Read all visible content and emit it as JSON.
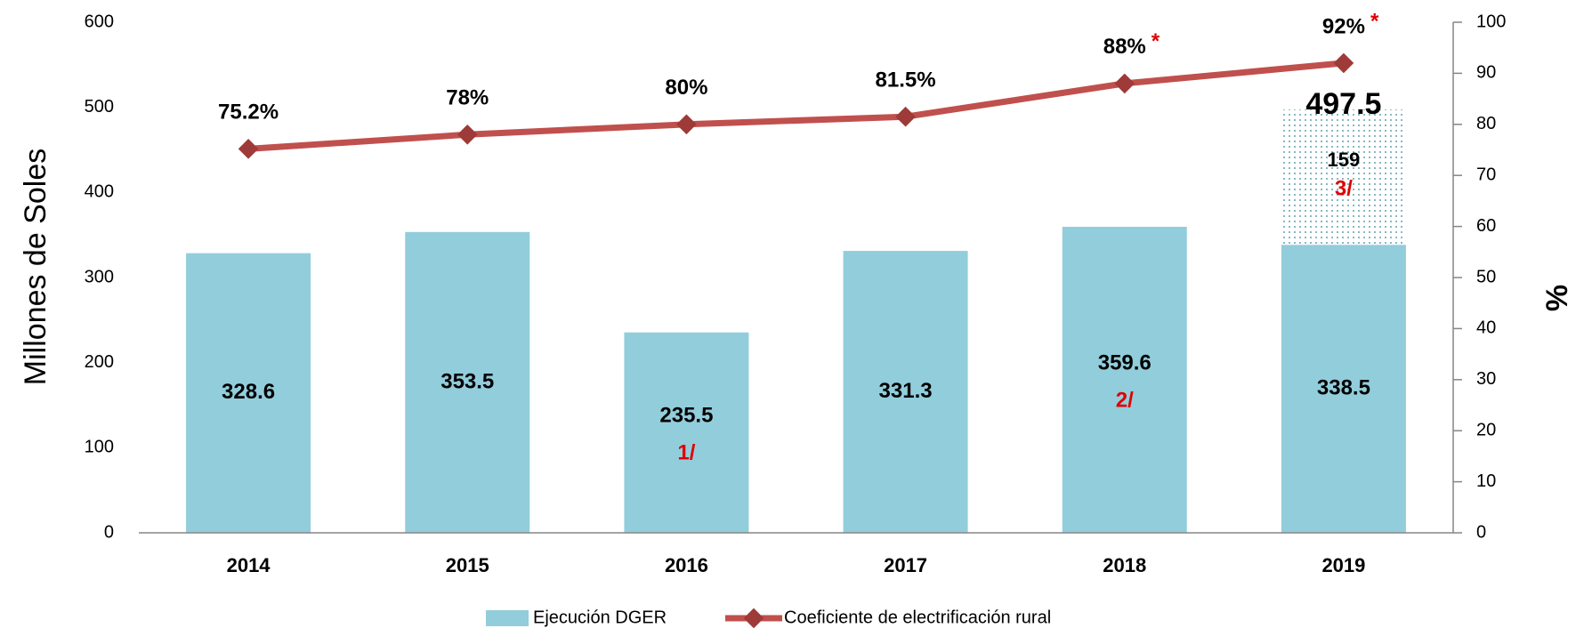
{
  "chart_data": {
    "type": "bar_line",
    "y_label": "Millones de Soles",
    "y2_label": "%",
    "categories": [
      "2014",
      "2015",
      "2016",
      "2017",
      "2018",
      "2019"
    ],
    "series": [
      {
        "name": "Ejecución DGER",
        "type": "bar",
        "color": "#92cddc",
        "values": [
          328.6,
          353.5,
          235.5,
          331.3,
          359.6,
          338.5
        ],
        "notes": [
          null,
          null,
          "1/",
          null,
          "2/",
          null
        ]
      },
      {
        "name": "Coeficiente de electrificación rural",
        "type": "line",
        "axis": "y2",
        "color": "#c0504d",
        "values": [
          75.2,
          78,
          80,
          81.5,
          88,
          92
        ],
        "value_labels": [
          "75.2%",
          "78%",
          "80%",
          "81.5%",
          "88%",
          "92%"
        ],
        "notes": [
          null,
          null,
          null,
          null,
          "*",
          "*"
        ]
      }
    ],
    "stack": {
      "values": [
        null,
        null,
        null,
        null,
        null,
        159
      ],
      "notes": [
        null,
        null,
        null,
        null,
        null,
        "3/"
      ]
    },
    "totals": [
      null,
      null,
      null,
      null,
      null,
      497.5
    ],
    "ylim": [
      0,
      600
    ],
    "yticks": [
      0,
      100,
      200,
      300,
      400,
      500,
      600
    ],
    "y2lim": [
      0,
      100
    ],
    "y2ticks": [
      0,
      10,
      20,
      30,
      40,
      50,
      60,
      70,
      80,
      90,
      100
    ],
    "legend": "bottom"
  }
}
